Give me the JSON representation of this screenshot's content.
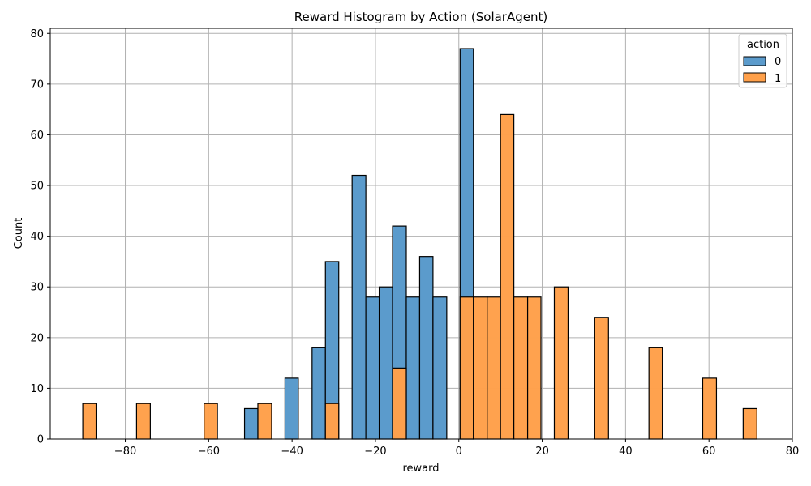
{
  "chart_data": {
    "type": "bar",
    "title": "Reward Histogram by Action (SolarAgent)",
    "xlabel": "reward",
    "ylabel": "Count",
    "xlim": [
      -98,
      80
    ],
    "ylim": [
      0,
      81
    ],
    "x_ticks": [
      -80,
      -60,
      -40,
      -20,
      0,
      20,
      40,
      60,
      80
    ],
    "x_tick_labels": [
      "−80",
      "−60",
      "−40",
      "−20",
      "0",
      "20",
      "40",
      "60",
      "80"
    ],
    "y_ticks": [
      0,
      10,
      20,
      30,
      40,
      50,
      60,
      70,
      80
    ],
    "y_tick_labels": [
      "0",
      "10",
      "20",
      "30",
      "40",
      "50",
      "60",
      "70",
      "80"
    ],
    "grid": true,
    "legend": {
      "title": "action",
      "placement": "top-right"
    },
    "series": [
      {
        "name": "0",
        "color": "#5b9bcc",
        "bins": [
          {
            "x0": -51.4,
            "x1": -48.2,
            "count": 6
          },
          {
            "x0": -41.7,
            "x1": -38.5,
            "count": 12
          },
          {
            "x0": -35.2,
            "x1": -32.0,
            "count": 18
          },
          {
            "x0": -32.0,
            "x1": -28.8,
            "count": 35
          },
          {
            "x0": -25.6,
            "x1": -22.3,
            "count": 52
          },
          {
            "x0": -22.3,
            "x1": -19.1,
            "count": 28
          },
          {
            "x0": -19.1,
            "x1": -15.9,
            "count": 30
          },
          {
            "x0": -15.9,
            "x1": -12.6,
            "count": 42
          },
          {
            "x0": -12.6,
            "x1": -9.4,
            "count": 28
          },
          {
            "x0": -9.4,
            "x1": -6.2,
            "count": 36
          },
          {
            "x0": -6.2,
            "x1": -2.9,
            "count": 28
          },
          {
            "x0": 0.3,
            "x1": 3.5,
            "count": 77
          }
        ]
      },
      {
        "name": "1",
        "color": "#ffa04a",
        "bins": [
          {
            "x0": -90.2,
            "x1": -87.0,
            "count": 7
          },
          {
            "x0": -77.3,
            "x1": -74.0,
            "count": 7
          },
          {
            "x0": -61.1,
            "x1": -57.9,
            "count": 7
          },
          {
            "x0": -48.2,
            "x1": -44.9,
            "count": 7
          },
          {
            "x0": -32.0,
            "x1": -28.8,
            "count": 7
          },
          {
            "x0": -15.9,
            "x1": -12.6,
            "count": 14
          },
          {
            "x0": 0.3,
            "x1": 3.5,
            "count": 28
          },
          {
            "x0": 3.5,
            "x1": 6.8,
            "count": 28
          },
          {
            "x0": 6.8,
            "x1": 10.0,
            "count": 28
          },
          {
            "x0": 10.0,
            "x1": 13.2,
            "count": 64
          },
          {
            "x0": 13.2,
            "x1": 16.5,
            "count": 28
          },
          {
            "x0": 16.5,
            "x1": 19.7,
            "count": 28
          },
          {
            "x0": 22.9,
            "x1": 26.2,
            "count": 30
          },
          {
            "x0": 32.6,
            "x1": 35.9,
            "count": 24
          },
          {
            "x0": 45.6,
            "x1": 48.8,
            "count": 18
          },
          {
            "x0": 58.5,
            "x1": 61.8,
            "count": 12
          },
          {
            "x0": 68.2,
            "x1": 71.5,
            "count": 6
          }
        ]
      }
    ]
  }
}
